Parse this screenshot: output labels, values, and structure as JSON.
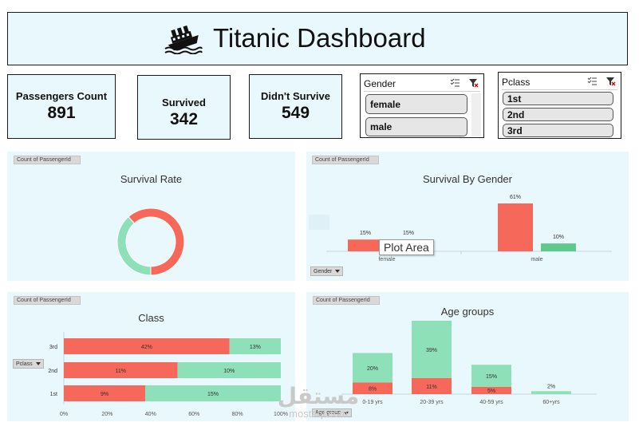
{
  "header": {
    "title": "Titanic Dashboard",
    "icon": "sinking-ship-icon"
  },
  "kpis": [
    {
      "label": "Passengers Count",
      "value": "891"
    },
    {
      "label": "Survived",
      "value": "342"
    },
    {
      "label": "Didn't Survive",
      "value": "549"
    }
  ],
  "slicers": {
    "gender": {
      "title": "Gender",
      "items": [
        "female",
        "male"
      ]
    },
    "pclass": {
      "title": "Pclass",
      "items": [
        "1st",
        "2nd",
        "3rd"
      ]
    }
  },
  "colors": {
    "survived": "#8ee0b8",
    "died": "#f5685a",
    "panel": "#e9f8fc",
    "male_survived": "#5ec98a"
  },
  "survival_rate": {
    "field_button": "Count of PassengerId",
    "title": "Survival Rate"
  },
  "survival_gender": {
    "field_button": "Count of PassengerId",
    "title": "Survival By Gender",
    "filter_button": "Gender",
    "tooltip": "Plot Area"
  },
  "class_chart": {
    "field_button": "Count of PassengerId",
    "title": "Class",
    "filter_button": "Pclass"
  },
  "age_chart": {
    "field_button": "Count of PassengerId",
    "title": "Age groups",
    "filter_button": "Age group"
  },
  "watermark": {
    "brand_ar": "مستقل",
    "brand_en": "mostaql.com"
  },
  "chart_data": [
    {
      "type": "pie",
      "title": "Survival Rate",
      "labels": [
        "Didn't Survive",
        "Survived"
      ],
      "values": [
        549,
        342
      ]
    },
    {
      "type": "bar",
      "title": "Survival By Gender",
      "categories": [
        "female",
        "male"
      ],
      "series": [
        {
          "values": [
            15,
            61
          ],
          "labels": [
            "15%",
            "61%"
          ]
        },
        {
          "values": [
            15,
            10
          ],
          "labels": [
            "15%",
            "10%"
          ]
        }
      ]
    },
    {
      "type": "bar",
      "orientation": "horizontal",
      "stacked": true,
      "title": "Class",
      "categories": [
        "3rd",
        "2nd",
        "1st"
      ],
      "xlim": [
        0,
        100
      ],
      "x_ticks": [
        "0%",
        "20%",
        "40%",
        "60%",
        "80%",
        "100%"
      ],
      "series": [
        {
          "values": [
            42,
            11,
            9
          ],
          "labels": [
            "42%",
            "11%",
            "9%"
          ]
        },
        {
          "values": [
            13,
            10,
            15
          ],
          "labels": [
            "13%",
            "10%",
            "15%"
          ]
        }
      ]
    },
    {
      "type": "bar",
      "stacked": true,
      "title": "Age groups",
      "categories": [
        "0-19 yrs",
        "20-39 yrs",
        "40-59 yrs",
        "60+yrs"
      ],
      "series": [
        {
          "values": [
            8,
            11,
            5,
            0
          ],
          "labels": [
            "8%",
            "11%",
            "5%",
            ""
          ]
        },
        {
          "values": [
            20,
            39,
            15,
            2
          ],
          "labels": [
            "20%",
            "39%",
            "15%",
            "2%"
          ]
        }
      ]
    }
  ]
}
